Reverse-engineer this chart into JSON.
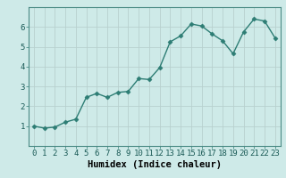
{
  "x": [
    0,
    1,
    2,
    3,
    4,
    5,
    6,
    7,
    8,
    9,
    10,
    11,
    12,
    13,
    14,
    15,
    16,
    17,
    18,
    19,
    20,
    21,
    22,
    23
  ],
  "y": [
    1.0,
    0.9,
    0.95,
    1.2,
    1.35,
    2.45,
    2.65,
    2.45,
    2.7,
    2.75,
    3.4,
    3.35,
    3.95,
    5.25,
    5.55,
    6.15,
    6.05,
    5.65,
    5.3,
    4.65,
    5.75,
    6.4,
    6.3,
    5.45
  ],
  "line_color": "#2d7d74",
  "marker": "D",
  "marker_size": 2.5,
  "bg_color": "#ceeae8",
  "grid_color": "#b8d0ce",
  "xlabel": "Humidex (Indice chaleur)",
  "xlim": [
    -0.5,
    23.5
  ],
  "ylim": [
    0.0,
    7.0
  ],
  "yticks": [
    1,
    2,
    3,
    4,
    5,
    6
  ],
  "xticks": [
    0,
    1,
    2,
    3,
    4,
    5,
    6,
    7,
    8,
    9,
    10,
    11,
    12,
    13,
    14,
    15,
    16,
    17,
    18,
    19,
    20,
    21,
    22,
    23
  ],
  "xlabel_fontsize": 7.5,
  "tick_fontsize": 6.5,
  "line_width": 1.0
}
